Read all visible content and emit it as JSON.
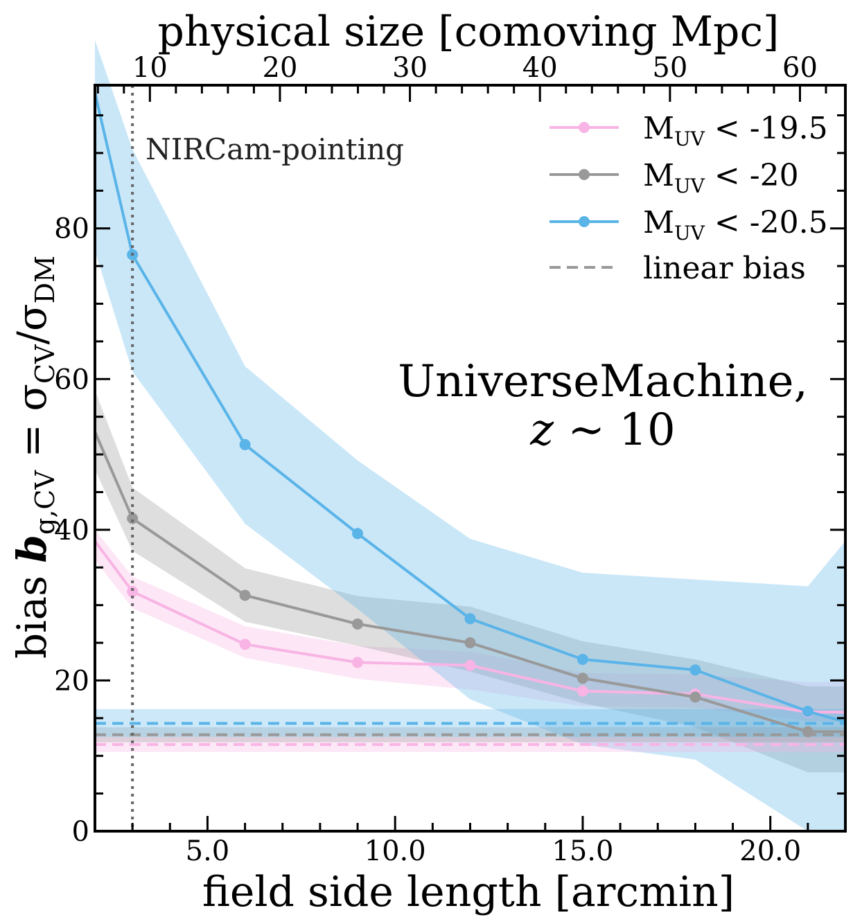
{
  "chart_data": {
    "type": "line",
    "x": [
      2.0,
      3.0,
      6.0,
      9.0,
      12.0,
      15.0,
      18.0,
      21.0,
      22.0
    ],
    "series": [
      {
        "name": "M_UV < -19.5",
        "label_prefix": "M",
        "label_sub": "UV",
        "label_suffix": " < -19.5",
        "color": "#f8b4e4",
        "values": [
          38.5,
          31.8,
          24.8,
          22.4,
          22.0,
          18.6,
          18.2,
          15.8,
          15.8
        ],
        "lower": [
          36.0,
          29.6,
          23.0,
          20.2,
          18.8,
          16.6,
          16.4,
          14.6,
          14.6
        ],
        "upper": [
          40.0,
          33.8,
          27.2,
          24.6,
          23.8,
          21.0,
          20.8,
          19.8,
          19.8
        ],
        "linear_bias": 11.5,
        "linear_bias_band": [
          10.5,
          12.5
        ],
        "show_markers_from": 1
      },
      {
        "name": "M_UV < -20",
        "label_prefix": "M",
        "label_sub": "UV",
        "label_suffix": " < -20",
        "color": "#999999",
        "values": [
          53.0,
          41.5,
          31.3,
          27.5,
          25.0,
          20.3,
          17.8,
          13.2,
          13.2
        ],
        "lower": [
          48.0,
          37.2,
          27.8,
          24.6,
          21.2,
          17.0,
          13.8,
          7.8,
          7.8
        ],
        "upper": [
          58.5,
          45.6,
          34.9,
          31.2,
          29.8,
          25.2,
          22.8,
          19.2,
          19.2
        ],
        "linear_bias": 12.8,
        "linear_bias_band": [
          11.8,
          13.8
        ],
        "show_markers_from": 1
      },
      {
        "name": "M_UV < -20.5",
        "label_prefix": "M",
        "label_sub": "UV",
        "label_suffix": " < -20.5",
        "color": "#5ab4e8",
        "values": [
          98.0,
          76.5,
          51.3,
          39.5,
          28.2,
          22.8,
          21.4,
          15.9,
          14.5
        ],
        "lower": [
          77.0,
          61.0,
          40.8,
          29.5,
          17.5,
          11.5,
          9.5,
          0.0,
          0.0
        ],
        "upper": [
          105.0,
          90.5,
          61.7,
          49.2,
          38.8,
          34.3,
          33.4,
          32.5,
          38.5
        ],
        "linear_bias": 14.3,
        "linear_bias_band": [
          12.5,
          16.2
        ],
        "show_markers_from": 1
      }
    ],
    "legend_extra": "linear bias",
    "legend_position": "top-right",
    "title": "",
    "xlabel": "field side length [arcmin]",
    "ylabel_prefix": "bias ",
    "ylabel_main": "b",
    "ylabel_sub": "g,CV",
    "ylabel_eq": " = σ",
    "ylabel_sub2": "CV",
    "ylabel_div": "/σ",
    "ylabel_sub3": "DM",
    "top_xlabel": "physical size [comoving Mpc]",
    "xlim": [
      2.0,
      22.0
    ],
    "ylim": [
      0,
      99
    ],
    "xticks": [
      5.0,
      10.0,
      15.0,
      20.0
    ],
    "xtick_labels": [
      "5.0",
      "10.0",
      "15.0",
      "20.0"
    ],
    "yticks": [
      0,
      20,
      40,
      60,
      80
    ],
    "ytick_labels": [
      "0",
      "20",
      "40",
      "60",
      "80"
    ],
    "top_ticks_arcmin_per_mpc": 0.3465,
    "top_ticks": [
      10,
      20,
      30,
      40,
      50,
      60
    ],
    "top_tick_labels": [
      "10",
      "20",
      "30",
      "40",
      "50",
      "60"
    ],
    "vline_x": 3.0,
    "vline_label": "NIRCam-pointing",
    "annotation_line1": "UniverseMachine,",
    "annotation_line2_var": "z",
    "annotation_line2_rest": " ∼ 10"
  }
}
